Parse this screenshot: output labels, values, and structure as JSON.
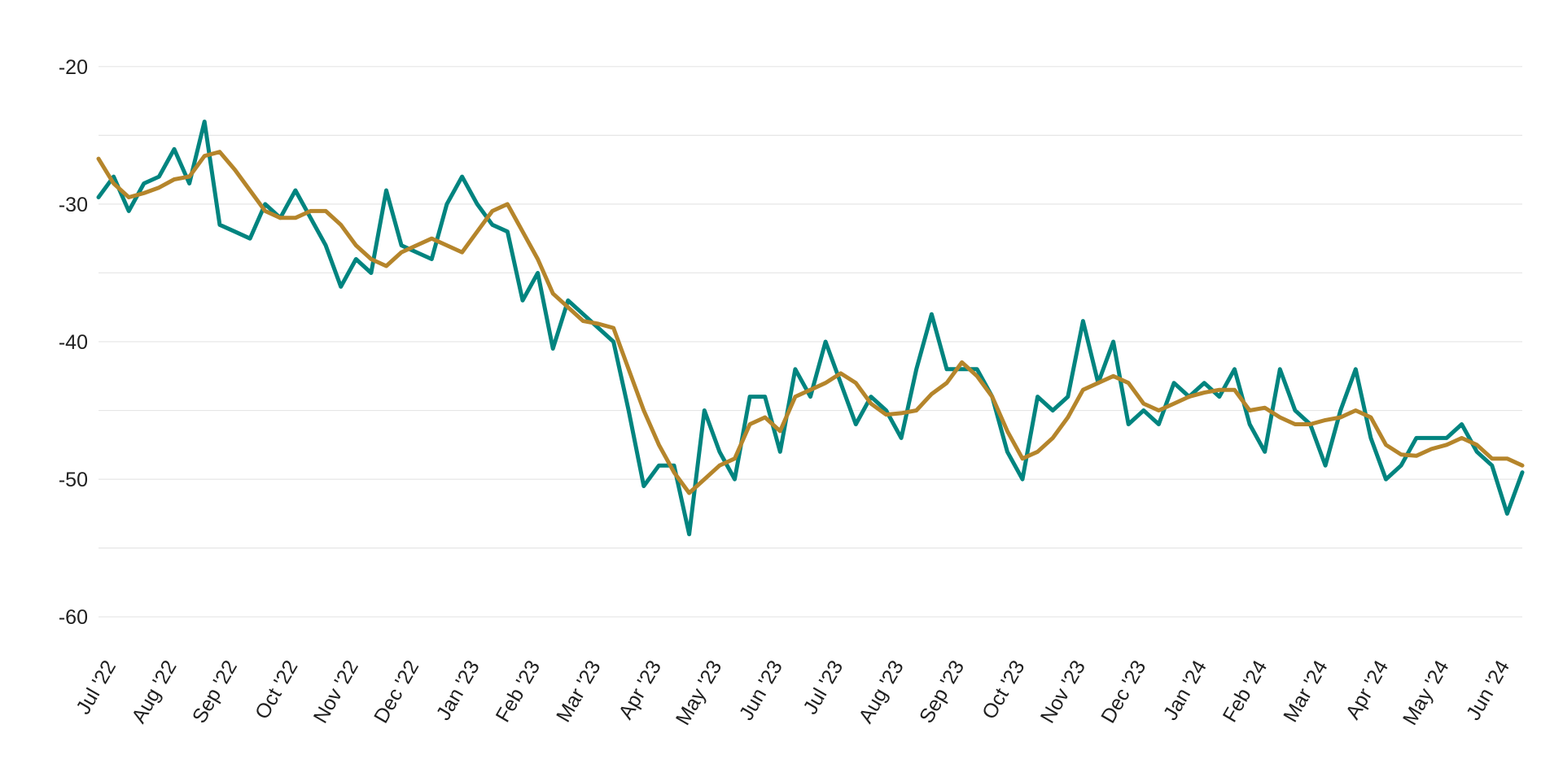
{
  "chart_data": {
    "type": "line",
    "categories": [
      "Jul '22",
      null,
      null,
      null,
      "Aug '22",
      null,
      null,
      null,
      "Sep '22",
      null,
      null,
      null,
      "Oct '22",
      null,
      null,
      null,
      "Nov '22",
      null,
      null,
      null,
      "Dec '22",
      null,
      null,
      null,
      "Jan '23",
      null,
      null,
      null,
      "Feb '23",
      null,
      null,
      null,
      "Mar '23",
      null,
      null,
      null,
      "Apr '23",
      null,
      null,
      null,
      "May '23",
      null,
      null,
      null,
      "Jun '23",
      null,
      null,
      null,
      "Jul '23",
      null,
      null,
      null,
      "Aug '23",
      null,
      null,
      null,
      "Sep '23",
      null,
      null,
      null,
      "Oct '23",
      null,
      null,
      null,
      "Nov '23",
      null,
      null,
      null,
      "Dec '23",
      null,
      null,
      null,
      "Jan '24",
      null,
      null,
      null,
      "Feb '24",
      null,
      null,
      null,
      "Mar '24",
      null,
      null,
      null,
      "Apr '24",
      null,
      null,
      null,
      "May '24",
      null,
      null,
      null,
      "Jun '24",
      null,
      null
    ],
    "series": [
      {
        "color": "#00847f",
        "values": [
          -29.5,
          -28,
          -30.5,
          -28.5,
          -28,
          -26,
          -28.5,
          -24,
          -31.5,
          -32,
          -32.5,
          -30,
          -31,
          -29,
          -31,
          -33,
          -36,
          -34,
          -35,
          -29,
          -33,
          -33.5,
          -34,
          -30,
          -28,
          -30,
          -31.5,
          -32,
          -37,
          -35,
          -40.5,
          -37,
          -38,
          -39,
          -40,
          -45,
          -50.5,
          -49,
          -49,
          -54,
          -45,
          -48,
          -50,
          -44,
          -44,
          -48,
          -42,
          -44,
          -40,
          -43,
          -46,
          -44,
          -45,
          -47,
          -42,
          -38,
          -42,
          -42,
          -42,
          -44,
          -48,
          -50,
          -44,
          -45,
          -44,
          -38.5,
          -43,
          -40,
          -46,
          -45,
          -46,
          -43,
          -44,
          -43,
          -44,
          -42,
          -46,
          -48,
          -42,
          -45,
          -46,
          -49,
          -45,
          -42,
          -47,
          -50,
          -49,
          -47,
          -47,
          -47,
          -46,
          -48,
          -49,
          -52.5,
          -49.5
        ]
      },
      {
        "color": "#b5852b",
        "values": [
          -26.7,
          -28.5,
          -29.5,
          -29.2,
          -28.8,
          -28.2,
          -28,
          -26.5,
          -26.2,
          -27.5,
          -29,
          -30.5,
          -31,
          -31,
          -30.5,
          -30.5,
          -31.5,
          -33,
          -34,
          -34.5,
          -33.5,
          -33,
          -32.5,
          -33,
          -33.5,
          -32,
          -30.5,
          -30,
          -32,
          -34,
          -36.5,
          -37.5,
          -38.5,
          -38.7,
          -39,
          -42,
          -45,
          -47.5,
          -49.5,
          -51,
          -50,
          -49,
          -48.5,
          -46,
          -45.5,
          -46.5,
          -44,
          -43.5,
          -43,
          -42.3,
          -43,
          -44.5,
          -45.3,
          -45.2,
          -45,
          -43.8,
          -43,
          -41.5,
          -42.5,
          -44,
          -46.5,
          -48.5,
          -48,
          -47,
          -45.5,
          -43.5,
          -43,
          -42.5,
          -43,
          -44.5,
          -45,
          -44.5,
          -44,
          -43.7,
          -43.5,
          -43.5,
          -45,
          -44.8,
          -45.5,
          -46,
          -46,
          -45.7,
          -45.5,
          -45,
          -45.5,
          -47.5,
          -48.2,
          -48.3,
          -47.8,
          -47.5,
          -47,
          -47.5,
          -48.5,
          -48.5,
          -49
        ]
      }
    ],
    "ylim": [
      -62,
      -18
    ],
    "yticks": [
      -60,
      -50,
      -40,
      -30,
      -20
    ],
    "grid_lines": [
      -60,
      -55,
      -50,
      -45,
      -40,
      -35,
      -30,
      -25,
      -20
    ]
  }
}
